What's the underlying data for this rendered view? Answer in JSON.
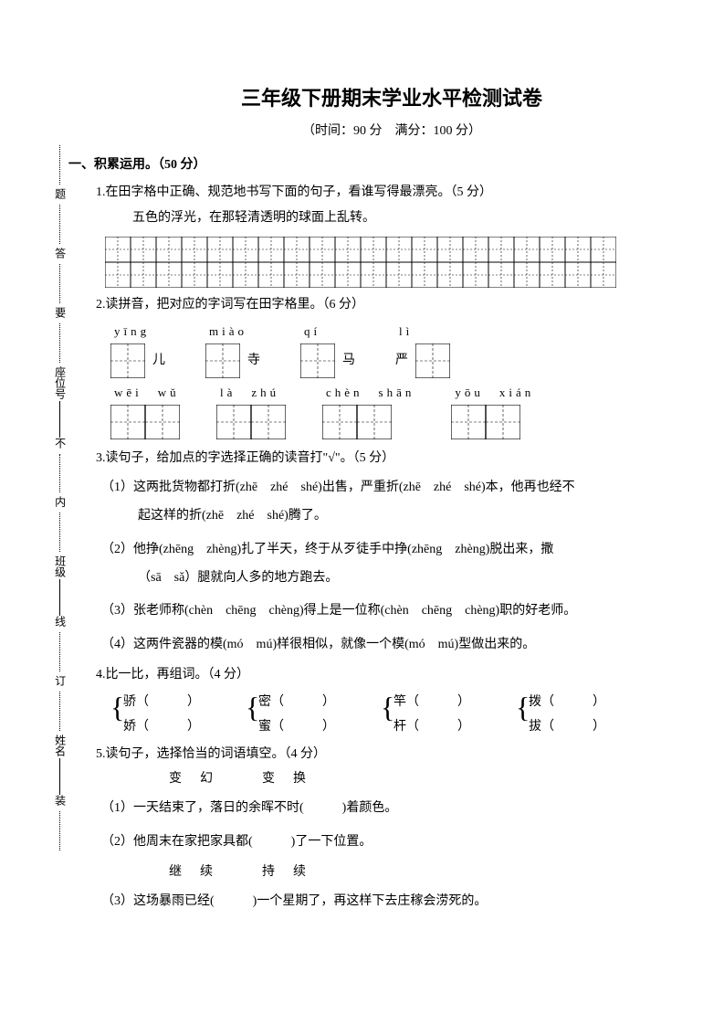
{
  "colors": {
    "fg": "#000000",
    "bg": "#ffffff",
    "stroke": "#000000"
  },
  "binding": {
    "name": "姓名",
    "class": "班级",
    "seat": "座位号",
    "zhuang": "装",
    "ding": "订",
    "xian": "线",
    "nei": "内",
    "bu": "不",
    "yao": "要",
    "da": "答",
    "ti": "题"
  },
  "title": "三年级下册期末学业水平检测试卷",
  "subtitle": "（时间：90 分　满分：100 分）",
  "section1": "一、积累运用。（50 分）",
  "q1": {
    "text": "1.在田字格中正确、规范地书写下面的句子，看谁写得最漂亮。（5 分）",
    "sentence": "五色的浮光，在那轻清透明的球面上乱转。",
    "grid": {
      "cols": 20,
      "rows": 2,
      "cell": 28
    }
  },
  "q2": {
    "text": "2.读拼音，把对应的字词写在田字格里。（6 分）",
    "row1": [
      {
        "pinyin": "yīng",
        "after": "儿",
        "boxes": 1
      },
      {
        "pinyin": "miào",
        "after": "寺",
        "boxes": 1
      },
      {
        "pinyin": "qí",
        "after": "马",
        "boxes": 1
      },
      {
        "pinyin": "lì",
        "before": "严",
        "boxes": 1
      }
    ],
    "row2": [
      {
        "pinyin": "wēi　wǔ",
        "boxes": 2
      },
      {
        "pinyin": "là　zhú",
        "boxes": 2
      },
      {
        "pinyin": "chèn　shān",
        "boxes": 2
      },
      {
        "pinyin": "yōu　xián",
        "boxes": 2
      }
    ],
    "cell": 38
  },
  "q3": {
    "text": "3.读句子，给加点的字选择正确的读音打\"√\"。（5 分）",
    "items": [
      "（1）这两批货物都打折(zhē　zhé　shé)出售，严重折(zhē　zhé　shé)本，他再也经不",
      "起这样的折(zhē　zhé　shé)腾了。",
      "（2）他挣(zhēng　zhèng)扎了半天，终于从歹徒手中挣(zhēng　zhèng)脱出来，撒",
      "（sā　sǎ）腿就向人多的地方跑去。",
      "（3）张老师称(chèn　chēng　chèng)得上是一位称(chèn　chēng　chèng)职的好老师。",
      "（4）这两件瓷器的模(mó　mú)样很相似，就像一个模(mó　mú)型做出来的。"
    ]
  },
  "q4": {
    "text": "4.比一比，再组词。（4 分）",
    "pairs": [
      [
        "骄（　　　）",
        "娇（　　　）"
      ],
      [
        "密（　　　）",
        "蜜（　　　）"
      ],
      [
        "竿（　　　）",
        "杆（　　　）"
      ],
      [
        "拨（　　　）",
        "拔（　　　）"
      ]
    ]
  },
  "q5": {
    "text": "5.读句子，选择恰当的词语填空。（4 分）",
    "group1_words": "变幻　变换",
    "group1_items": [
      "（1）一天结束了，落日的余晖不时(　　　)着颜色。",
      "（2）他周末在家把家具都(　　　)了一下位置。"
    ],
    "group2_words": "继续　持续",
    "group2_items": [
      "（3）这场暴雨已经(　　　)一个星期了，再这样下去庄稼会涝死的。"
    ]
  }
}
